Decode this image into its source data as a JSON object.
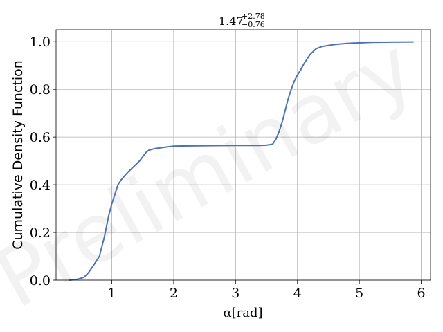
{
  "chart_data": {
    "type": "line",
    "title": {
      "value": "1.47",
      "upper": "+2.78",
      "lower": "−0.76"
    },
    "xlabel": "α[rad]",
    "ylabel": "Cumulative Density Function",
    "xlim": [
      0.1,
      6.15
    ],
    "ylim": [
      0.0,
      1.05
    ],
    "x_ticks": [
      "1",
      "2",
      "3",
      "4",
      "5",
      "6"
    ],
    "y_ticks": [
      "0.0",
      "0.2",
      "0.4",
      "0.6",
      "0.8",
      "1.0"
    ],
    "grid": true,
    "watermark": "Preliminary",
    "colors": {
      "line": "#4c72b0",
      "grid": "#b0b0b0",
      "axes": "#000000"
    },
    "series": [
      {
        "x": [
          0.32,
          0.45,
          0.55,
          0.62,
          0.7,
          0.8,
          0.88,
          0.95,
          1.0,
          1.05,
          1.1,
          1.15,
          1.25,
          1.35,
          1.45,
          1.55,
          1.6,
          1.7,
          1.9,
          2.0,
          2.5,
          3.0,
          3.4,
          3.5,
          3.6,
          3.65,
          3.7,
          3.75,
          3.8,
          3.85,
          3.9,
          3.95,
          4.0,
          4.05,
          4.1,
          4.2,
          4.3,
          4.4,
          4.6,
          4.8,
          5.0,
          5.2,
          5.5,
          5.87
        ],
        "y": [
          0.0,
          0.004,
          0.012,
          0.03,
          0.06,
          0.1,
          0.18,
          0.27,
          0.32,
          0.36,
          0.4,
          0.42,
          0.45,
          0.475,
          0.5,
          0.535,
          0.545,
          0.552,
          0.559,
          0.562,
          0.564,
          0.565,
          0.565,
          0.566,
          0.57,
          0.59,
          0.62,
          0.66,
          0.71,
          0.76,
          0.8,
          0.835,
          0.86,
          0.88,
          0.905,
          0.945,
          0.97,
          0.98,
          0.988,
          0.993,
          0.995,
          0.997,
          0.998,
          0.999
        ]
      }
    ]
  }
}
